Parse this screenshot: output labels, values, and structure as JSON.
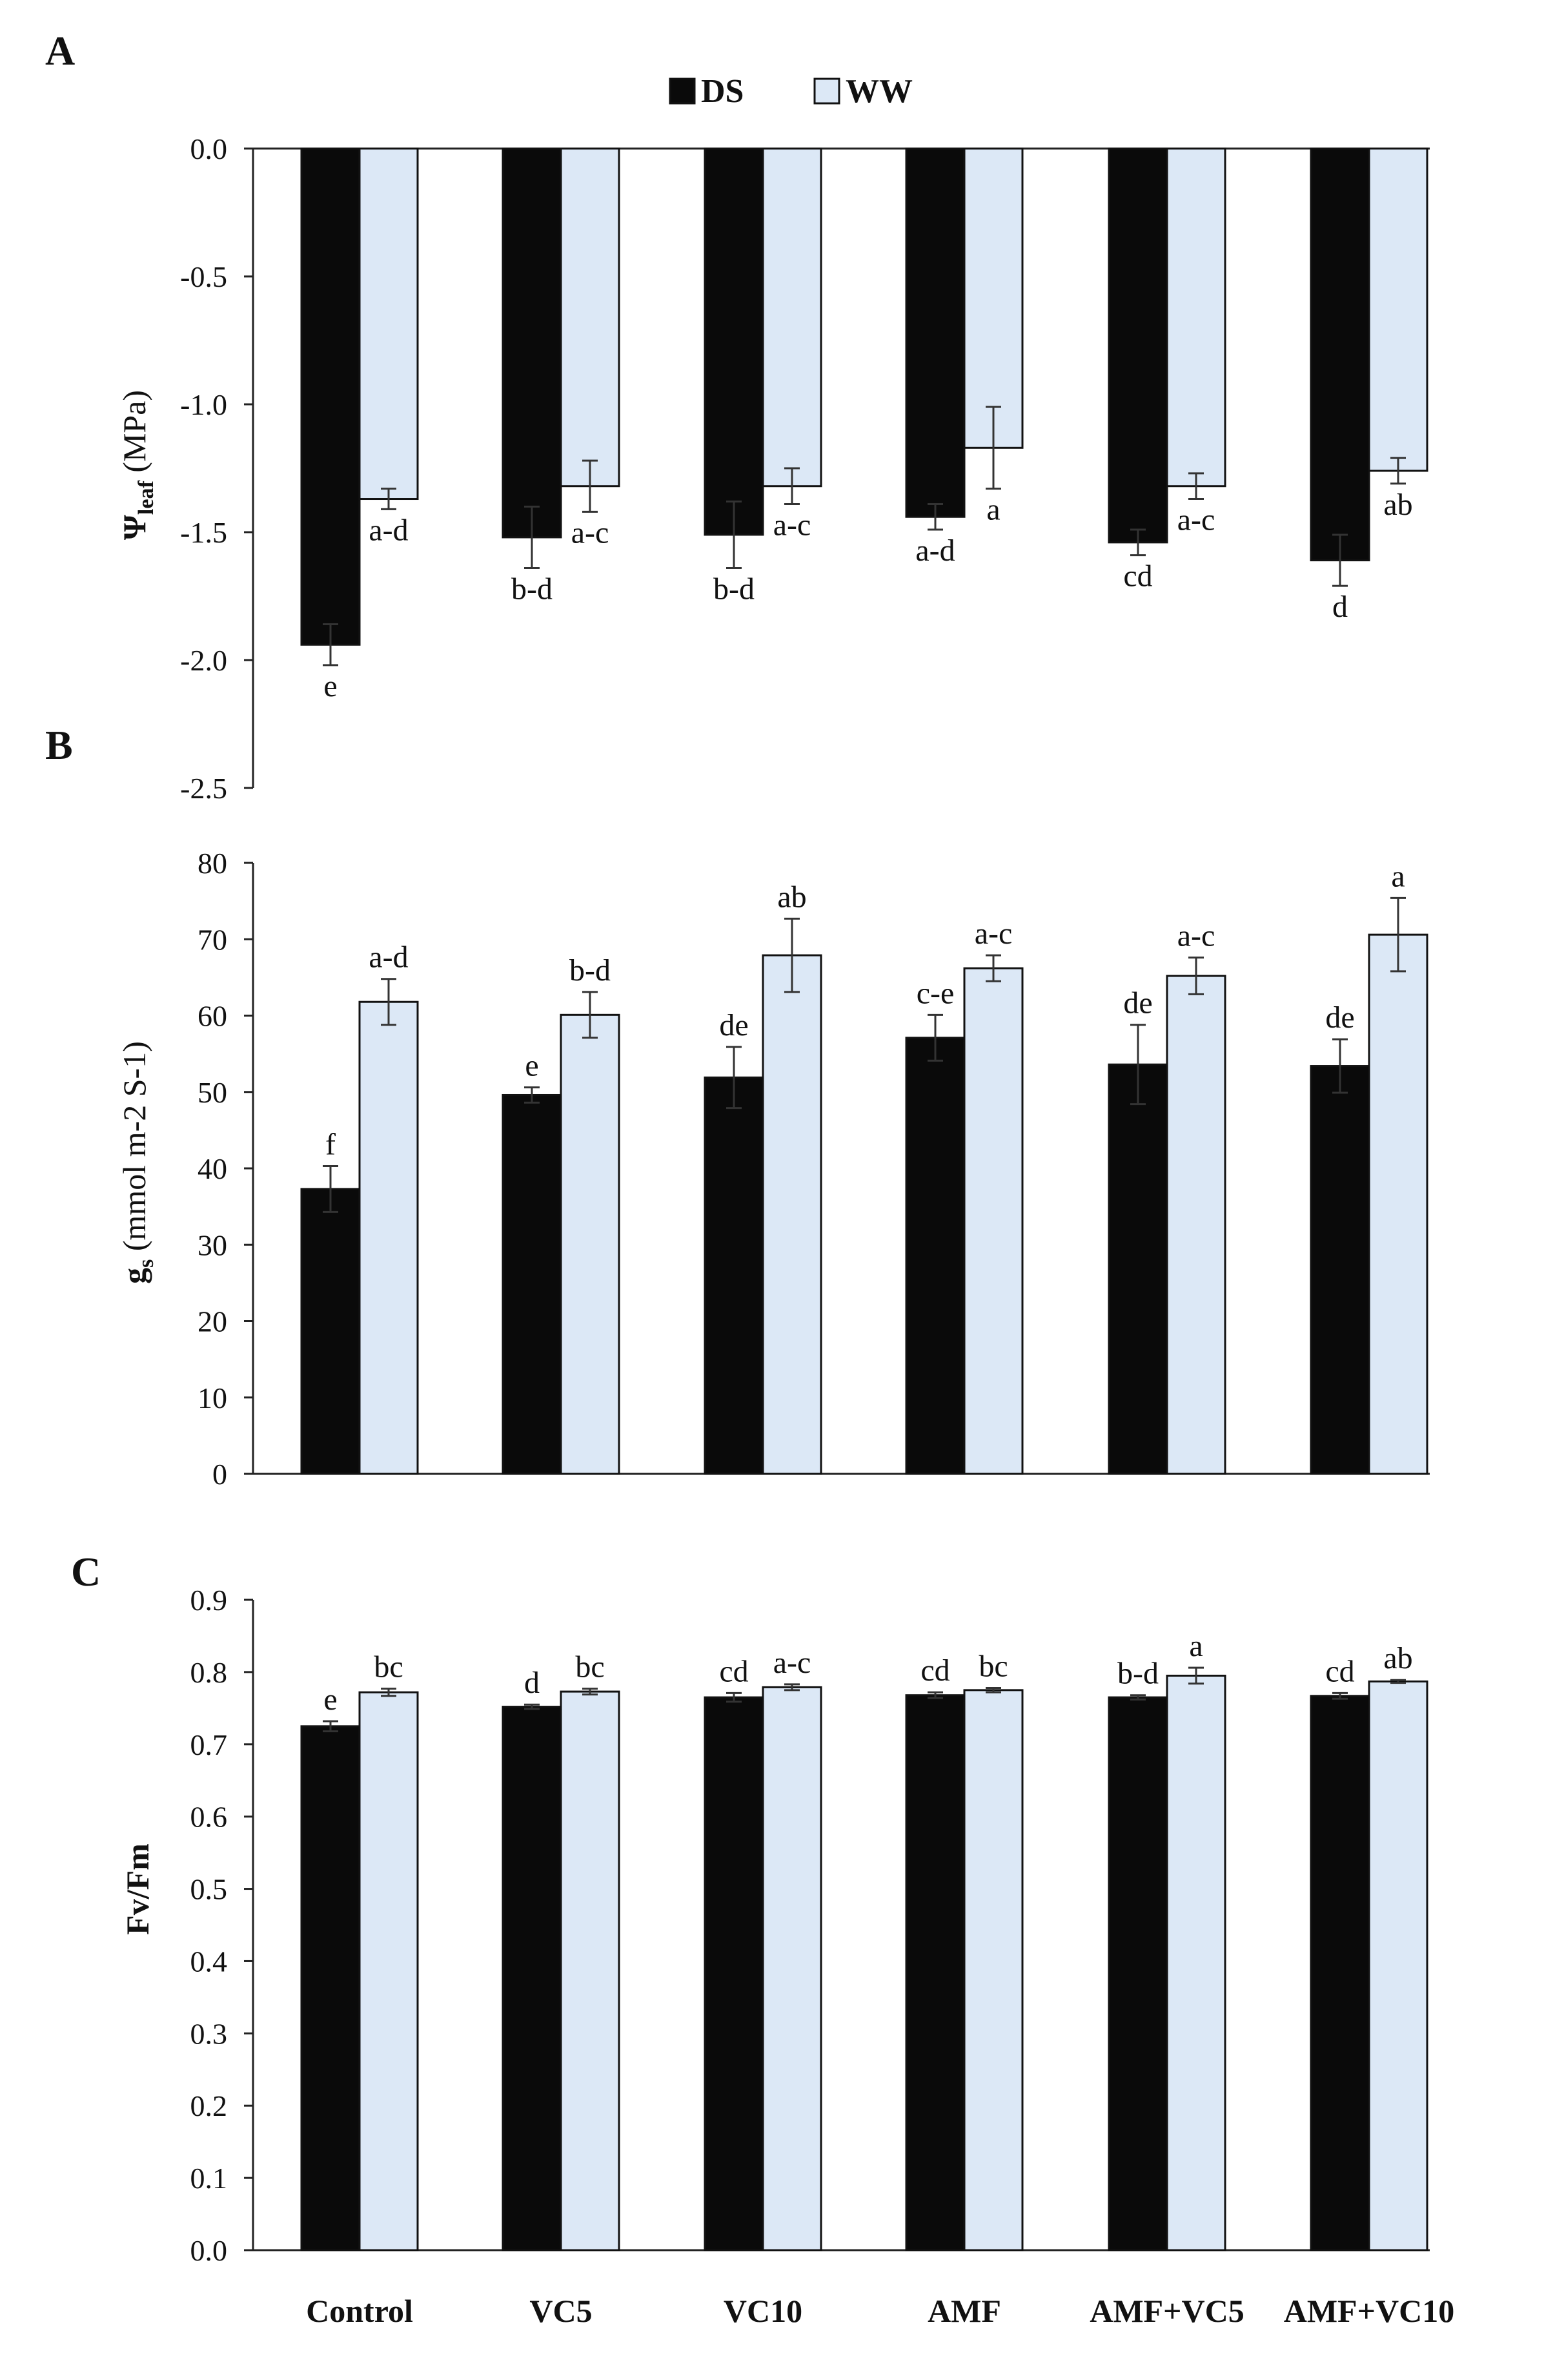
{
  "legend": {
    "items": [
      {
        "name": "DS",
        "color": "#0a0a0a"
      },
      {
        "name": "WW",
        "color": "#dce8f6"
      }
    ]
  },
  "chart_data": [
    {
      "panel": "A",
      "type": "bar",
      "ylabel_main": "Ψ",
      "ylabel_sub": "leaf",
      "ylabel_rest": " (MPa)",
      "ylim": [
        -2.5,
        0.0
      ],
      "yticks": [
        0.0,
        -0.5,
        -1.0,
        -1.5,
        -2.0,
        -2.5
      ],
      "ytick_labels": [
        "0.0",
        "-0.5",
        "-1.0",
        "-1.5",
        "-2.0",
        "-2.5"
      ],
      "categories": [
        "Control",
        "VC5",
        "VC10",
        "AMF",
        "AMF+VC5",
        "AMF+VC10"
      ],
      "series": [
        {
          "name": "DS",
          "values": [
            -1.94,
            -1.52,
            -1.51,
            -1.44,
            -1.54,
            -1.61
          ],
          "errors": [
            0.08,
            0.12,
            0.13,
            0.05,
            0.05,
            0.1
          ],
          "letters": [
            "e",
            "b-d",
            "b-d",
            "a-d",
            "cd",
            "d"
          ]
        },
        {
          "name": "WW",
          "values": [
            -1.37,
            -1.32,
            -1.32,
            -1.17,
            -1.32,
            -1.26
          ],
          "errors": [
            0.04,
            0.1,
            0.07,
            0.16,
            0.05,
            0.05
          ],
          "letters": [
            "a-d",
            "a-c",
            "a-c",
            "a",
            "a-c",
            "ab"
          ]
        }
      ]
    },
    {
      "panel": "B",
      "type": "bar",
      "ylabel_main": "g",
      "ylabel_sub": "s",
      "ylabel_rest": " (mmol m-2 S-1)",
      "ylim": [
        0,
        80
      ],
      "yticks": [
        0,
        10,
        20,
        30,
        40,
        50,
        60,
        70,
        80
      ],
      "ytick_labels": [
        "0",
        "10",
        "20",
        "30",
        "40",
        "50",
        "60",
        "70",
        "80"
      ],
      "categories": [
        "Control",
        "VC5",
        "VC10",
        "AMF",
        "AMF+VC5",
        "AMF+VC10"
      ],
      "series": [
        {
          "name": "DS",
          "values": [
            37.3,
            49.6,
            51.9,
            57.1,
            53.6,
            53.4
          ],
          "errors": [
            3.0,
            1.0,
            4.0,
            3.0,
            5.2,
            3.5
          ],
          "letters": [
            "f",
            "e",
            "de",
            "c-e",
            "de",
            "de"
          ]
        },
        {
          "name": "WW",
          "values": [
            61.8,
            60.1,
            67.9,
            66.2,
            65.2,
            70.6
          ],
          "errors": [
            3.0,
            3.0,
            4.8,
            1.7,
            2.4,
            4.8
          ],
          "letters": [
            "a-d",
            "b-d",
            "ab",
            "a-c",
            "a-c",
            "a"
          ]
        }
      ]
    },
    {
      "panel": "C",
      "type": "bar",
      "ylabel": "Fv/Fm",
      "ylim": [
        0.0,
        0.9
      ],
      "yticks": [
        0.0,
        0.1,
        0.2,
        0.3,
        0.4,
        0.5,
        0.6,
        0.7,
        0.8,
        0.9
      ],
      "ytick_labels": [
        "0.0",
        "0.1",
        "0.2",
        "0.3",
        "0.4",
        "0.5",
        "0.6",
        "0.7",
        "0.8",
        "0.9"
      ],
      "categories": [
        "Control",
        "VC5",
        "VC10",
        "AMF",
        "AMF+VC5",
        "AMF+VC10"
      ],
      "series": [
        {
          "name": "DS",
          "values": [
            0.725,
            0.752,
            0.765,
            0.768,
            0.765,
            0.767
          ],
          "errors": [
            0.007,
            0.003,
            0.006,
            0.004,
            0.003,
            0.004
          ],
          "letters": [
            "e",
            "d",
            "cd",
            "cd",
            "b-d",
            "cd"
          ]
        },
        {
          "name": "WW",
          "values": [
            0.772,
            0.773,
            0.779,
            0.775,
            0.795,
            0.787
          ],
          "errors": [
            0.005,
            0.004,
            0.004,
            0.003,
            0.011,
            0.002
          ],
          "letters": [
            "bc",
            "bc",
            "a-c",
            "bc",
            "a",
            "ab"
          ]
        }
      ]
    }
  ]
}
